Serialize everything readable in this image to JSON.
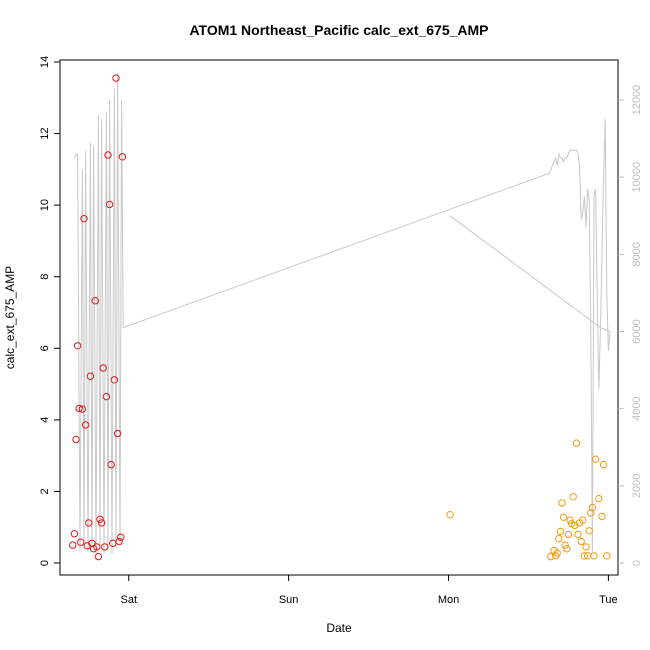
{
  "chart_data": {
    "type": "scatter",
    "title": "ATOM1 Northeast_Pacific calc_ext_675_AMP",
    "xlabel": "Date",
    "ylabel": "calc_ext_675_AMP",
    "x_ticks": [
      "Sat",
      "Sun",
      "Mon",
      "Tue"
    ],
    "x_tick_values_days": [
      1,
      2,
      3,
      4
    ],
    "xlim_days": [
      0.57,
      4.06
    ],
    "ylim": [
      0,
      14
    ],
    "y_ticks": [
      0,
      2,
      4,
      6,
      8,
      10,
      12,
      14
    ],
    "secondary_y": {
      "ylim": [
        0,
        12000
      ],
      "ticks": [
        0,
        2000,
        4000,
        6000,
        8000,
        10000,
        12000
      ],
      "color": "#c8c8c8"
    },
    "grid": false,
    "legend": "none",
    "colors": {
      "series_red": "#e41a1c",
      "series_orange": "#f39c12",
      "line": "#c8c8c8"
    },
    "series": [
      {
        "color": "#e41a1c",
        "marker": "circle-open",
        "x": [
          0.65,
          0.66,
          0.67,
          0.68,
          0.69,
          0.7,
          0.71,
          0.72,
          0.73,
          0.74,
          0.75,
          0.76,
          0.77,
          0.78,
          0.79,
          0.8,
          0.81,
          0.82,
          0.83,
          0.84,
          0.85,
          0.86,
          0.87,
          0.88,
          0.89,
          0.9,
          0.91,
          0.92,
          0.93,
          0.94,
          0.95,
          0.96
        ],
        "y": [
          0.5,
          0.82,
          3.45,
          6.07,
          4.32,
          0.58,
          4.3,
          9.62,
          3.86,
          0.48,
          1.12,
          5.22,
          0.55,
          0.4,
          7.33,
          0.45,
          0.18,
          1.22,
          1.12,
          5.45,
          0.45,
          4.65,
          11.4,
          10.02,
          2.75,
          0.55,
          5.12,
          13.55,
          3.62,
          0.6,
          0.72,
          11.35
        ]
      },
      {
        "color": "#f39c12",
        "marker": "circle-open",
        "x": [
          3.01,
          3.64,
          3.66,
          3.67,
          3.68,
          3.69,
          3.7,
          3.71,
          3.72,
          3.73,
          3.74,
          3.75,
          3.76,
          3.77,
          3.78,
          3.79,
          3.8,
          3.81,
          3.82,
          3.83,
          3.84,
          3.85,
          3.86,
          3.87,
          3.88,
          3.89,
          3.9,
          3.91,
          3.92,
          3.94,
          3.96,
          3.97,
          3.99
        ],
        "y": [
          1.35,
          0.18,
          0.35,
          0.2,
          0.28,
          0.68,
          0.88,
          1.68,
          1.28,
          0.5,
          0.4,
          0.8,
          1.2,
          1.1,
          1.85,
          1.05,
          3.35,
          0.8,
          1.12,
          0.6,
          1.2,
          0.2,
          0.45,
          0.2,
          0.9,
          1.4,
          1.55,
          0.2,
          2.9,
          1.8,
          1.3,
          2.75,
          0.2
        ]
      }
    ],
    "line_series": {
      "color": "#c8c8c8",
      "axis": "secondary",
      "x": [
        0.66,
        0.67,
        0.68,
        0.695,
        0.71,
        0.72,
        0.73,
        0.745,
        0.76,
        0.77,
        0.78,
        0.795,
        0.81,
        0.82,
        0.83,
        0.845,
        0.86,
        0.87,
        0.88,
        0.895,
        0.91,
        0.92,
        0.93,
        0.945,
        0.955,
        0.965,
        3.63,
        3.64,
        3.65,
        3.66,
        3.67,
        3.68,
        3.69,
        3.7,
        3.71,
        3.72,
        3.73,
        3.74,
        3.75,
        3.76,
        3.77,
        3.78,
        3.79,
        3.8,
        3.81,
        3.82,
        3.83,
        3.84,
        3.85,
        3.86,
        3.87,
        3.88,
        3.89,
        3.9,
        3.91,
        3.92,
        3.93,
        3.94,
        3.95,
        3.96,
        3.97,
        3.98,
        3.99,
        4.0,
        4.01,
        3.95,
        3.01
      ],
      "y": [
        10500,
        10600,
        10600,
        300,
        10200,
        400,
        10700,
        300,
        10900,
        500,
        10800,
        250,
        11600,
        400,
        11500,
        250,
        11700,
        400,
        12000,
        250,
        12300,
        400,
        12700,
        500,
        12000,
        6100,
        10100,
        10200,
        10300,
        10400,
        10500,
        10300,
        10600,
        10500,
        10500,
        10400,
        10500,
        10500,
        10600,
        10700,
        10700,
        10700,
        10700,
        10700,
        10600,
        10300,
        8900,
        9100,
        9500,
        8700,
        9700,
        9400,
        6000,
        300,
        9500,
        9700,
        7000,
        4500,
        6000,
        8000,
        10000,
        11500,
        7000,
        5500,
        6000,
        6100,
        9000
      ]
    }
  }
}
